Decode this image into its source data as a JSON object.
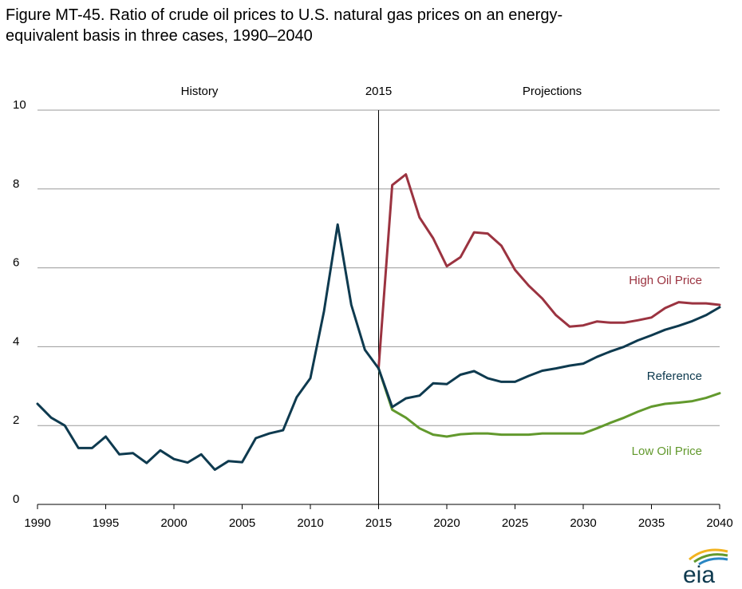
{
  "title_line1": "Figure MT-45. Ratio of crude oil prices to U.S. natural gas prices on an energy-",
  "title_line2": "equivalent basis in three cases, 1990–2040",
  "chart_data": {
    "type": "line",
    "title": "Figure MT-45. Ratio of crude oil prices to U.S. natural gas prices on an energy-equivalent basis in three cases, 1990–2040",
    "xlim": [
      1990,
      2040
    ],
    "ylim": [
      0,
      10
    ],
    "x_ticks": [
      1990,
      1995,
      2000,
      2005,
      2010,
      2015,
      2020,
      2025,
      2030,
      2035,
      2040
    ],
    "y_ticks": [
      0,
      2,
      4,
      6,
      8,
      10
    ],
    "grid": "horizontal",
    "annotations": {
      "history": "History",
      "divider": "2015",
      "projections": "Projections"
    },
    "divider_x": 2015,
    "series": [
      {
        "name": "History",
        "color": "#0e3a4f",
        "x": [
          1990,
          1991,
          1992,
          1993,
          1994,
          1995,
          1996,
          1997,
          1998,
          1999,
          2000,
          2001,
          2002,
          2003,
          2004,
          2005,
          2006,
          2007,
          2008,
          2009,
          2010,
          2011,
          2012,
          2013,
          2014,
          2015
        ],
        "values": [
          2.55,
          2.2,
          2.0,
          1.43,
          1.43,
          1.72,
          1.27,
          1.3,
          1.05,
          1.37,
          1.15,
          1.06,
          1.27,
          0.88,
          1.1,
          1.07,
          1.68,
          1.8,
          1.88,
          2.72,
          3.2,
          4.9,
          7.1,
          5.06,
          3.92,
          3.45
        ]
      },
      {
        "name": "High Oil Price",
        "color": "#9b3340",
        "x": [
          2015,
          2016,
          2017,
          2018,
          2019,
          2020,
          2021,
          2022,
          2023,
          2024,
          2025,
          2026,
          2027,
          2028,
          2029,
          2030,
          2031,
          2032,
          2033,
          2034,
          2035,
          2036,
          2037,
          2038,
          2039,
          2040
        ],
        "values": [
          3.45,
          8.1,
          8.37,
          7.28,
          6.75,
          6.04,
          6.27,
          6.9,
          6.87,
          6.56,
          5.95,
          5.55,
          5.22,
          4.8,
          4.51,
          4.54,
          4.64,
          4.61,
          4.61,
          4.67,
          4.74,
          4.98,
          5.13,
          5.1,
          5.1,
          5.06
        ]
      },
      {
        "name": "Reference",
        "color": "#0e3a4f",
        "x": [
          2015,
          2016,
          2017,
          2018,
          2019,
          2020,
          2021,
          2022,
          2023,
          2024,
          2025,
          2026,
          2027,
          2028,
          2029,
          2030,
          2031,
          2032,
          2033,
          2034,
          2035,
          2036,
          2037,
          2038,
          2039,
          2040
        ],
        "values": [
          3.45,
          2.47,
          2.69,
          2.76,
          3.07,
          3.05,
          3.29,
          3.38,
          3.2,
          3.11,
          3.11,
          3.26,
          3.39,
          3.45,
          3.52,
          3.57,
          3.74,
          3.88,
          4.0,
          4.16,
          4.29,
          4.43,
          4.53,
          4.65,
          4.8,
          5.0
        ]
      },
      {
        "name": "Low Oil Price",
        "color": "#62992d",
        "x": [
          2015,
          2016,
          2017,
          2018,
          2019,
          2020,
          2021,
          2022,
          2023,
          2024,
          2025,
          2026,
          2027,
          2028,
          2029,
          2030,
          2031,
          2032,
          2033,
          2034,
          2035,
          2036,
          2037,
          2038,
          2039,
          2040
        ],
        "values": [
          3.45,
          2.4,
          2.2,
          1.93,
          1.77,
          1.72,
          1.78,
          1.8,
          1.8,
          1.77,
          1.77,
          1.77,
          1.8,
          1.8,
          1.8,
          1.8,
          1.93,
          2.07,
          2.2,
          2.35,
          2.48,
          2.55,
          2.58,
          2.62,
          2.7,
          2.82
        ]
      }
    ],
    "series_labels": [
      {
        "name": "High Oil Price",
        "color": "#9b3340"
      },
      {
        "name": "Reference",
        "color": "#0e3a4f"
      },
      {
        "name": "Low Oil Price",
        "color": "#62992d"
      }
    ]
  },
  "logo": {
    "text": "eia",
    "arc_colors": [
      "#f2b31f",
      "#62992d",
      "#2a86c3"
    ],
    "text_color": "#0e3a4f"
  }
}
